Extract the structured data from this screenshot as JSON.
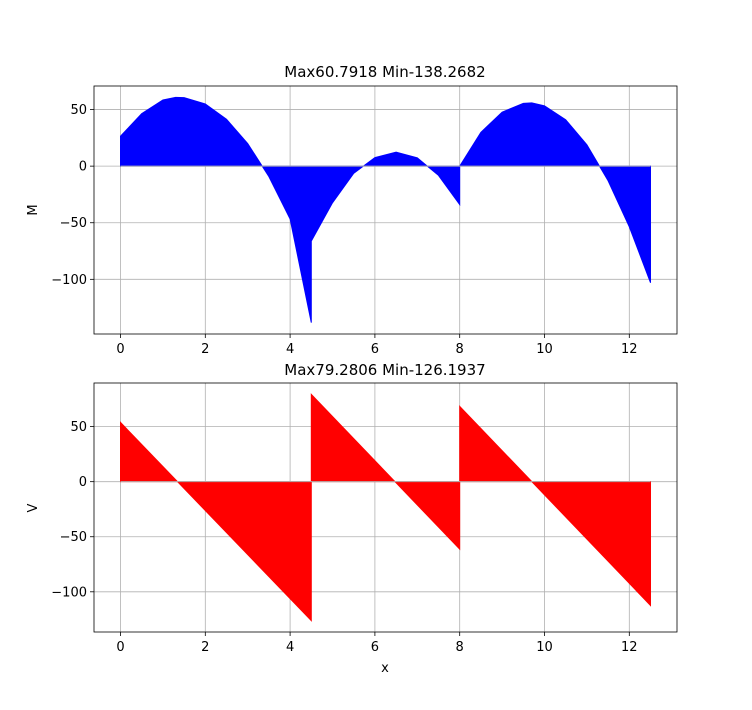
{
  "chart_data": [
    {
      "type": "area",
      "title": "Max60.7918 Min-138.2682",
      "xlabel": "",
      "ylabel": "M",
      "xlim": [
        -0.625,
        13.125
      ],
      "ylim": [
        -148.3,
        70.8
      ],
      "xticks": [
        0,
        2,
        4,
        6,
        8,
        10,
        12
      ],
      "yticks": [
        -100,
        -50,
        0,
        50
      ],
      "ytick_labels": [
        "−100",
        "−50",
        "0",
        "50"
      ],
      "grid": true,
      "color": "#0000ff",
      "x": [
        0,
        0.5,
        1.0,
        1.3,
        1.5,
        2.0,
        2.5,
        3.0,
        3.5,
        4.0,
        4.5,
        4.5,
        5.0,
        5.5,
        6.0,
        6.5,
        7.0,
        7.5,
        8.0,
        8.0,
        8.5,
        9.0,
        9.5,
        9.7,
        10.0,
        10.5,
        11.0,
        11.5,
        12.0,
        12.5
      ],
      "y": [
        26.4,
        46.4,
        58.5,
        60.79,
        60.5,
        54.9,
        41.4,
        20.0,
        -9.3,
        -46.7,
        -138.27,
        -66.3,
        -32.4,
        -6.4,
        7.6,
        12.4,
        7.3,
        -8.2,
        -34.0,
        0.0,
        29.9,
        47.7,
        55.5,
        55.9,
        53.3,
        41.0,
        18.9,
        -12.9,
        -53.6,
        -103.0
      ]
    },
    {
      "type": "area",
      "title": "Max79.2806 Min-126.1937",
      "xlabel": "x",
      "ylabel": "V",
      "xlim": [
        -0.625,
        13.125
      ],
      "ylim": [
        -136.5,
        89.6
      ],
      "xticks": [
        0,
        2,
        4,
        6,
        8,
        10,
        12
      ],
      "yticks": [
        -100,
        -50,
        0,
        50
      ],
      "ytick_labels": [
        "−100",
        "−50",
        "0",
        "50"
      ],
      "grid": true,
      "color": "#ff0000",
      "x": [
        0,
        4.5,
        4.5,
        8.0,
        8.0,
        12.5
      ],
      "y": [
        53.8,
        -126.19,
        79.28,
        -61.3,
        68.4,
        -112.4
      ]
    }
  ]
}
